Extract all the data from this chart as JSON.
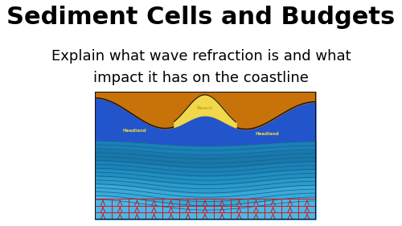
{
  "title": "Sediment Cells and Budgets",
  "title_bg": "#ffff00",
  "title_color": "#000000",
  "subtitle_line1": "Explain what wave refraction is and what",
  "subtitle_line2": "impact it has on the coastline",
  "subtitle_color": "#000000",
  "fig_bg": "#ffffff",
  "land_color": "#c8720a",
  "beach_color": "#f0d84a",
  "water_bg_color": "#2255cc",
  "wave_band_colors": [
    "#4ab8e8",
    "#3aaad8",
    "#2a9ccc",
    "#2090c0",
    "#1a84b8",
    "#1878aa",
    "#1a80b8"
  ],
  "wave_line_color": "#1a6090",
  "grid_line_color": "#dd1111",
  "border_color": "#111111",
  "headland_label_color": "#e8d840",
  "beach_label_color": "#d4a820",
  "title_fontsize": 22,
  "subtitle_fontsize": 13
}
